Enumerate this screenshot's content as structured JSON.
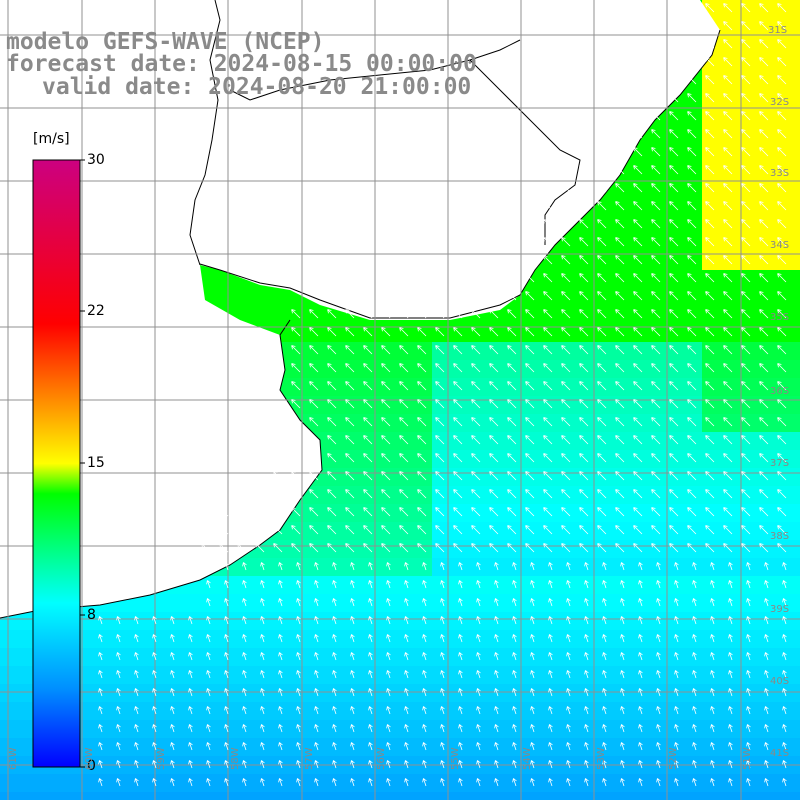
{
  "title": {
    "line1": "modelo GEFS-WAVE (NCEP)",
    "line2": "forecast date: 2024-08-15 00:00:00",
    "line3": "valid date: 2024-08-20 21:00:00"
  },
  "colorbar": {
    "unit": "[m/s]",
    "ticks": [
      "30",
      "22",
      "15",
      "8",
      "0"
    ],
    "min": 0,
    "max": 30
  },
  "grid": {
    "lat_labels": [
      "31S",
      "32S",
      "33S",
      "34S",
      "35S",
      "36S",
      "37S",
      "38S",
      "39S",
      "40S",
      "41S"
    ],
    "lon_labels": [
      "61W",
      "60W",
      "59W",
      "58W",
      "57W",
      "56W",
      "55W",
      "54W",
      "53W",
      "52W",
      "51W"
    ]
  },
  "colors": {
    "land": "#ffffff",
    "coast": "#000000",
    "grid": "#909090",
    "arrows": "#ffffff"
  }
}
